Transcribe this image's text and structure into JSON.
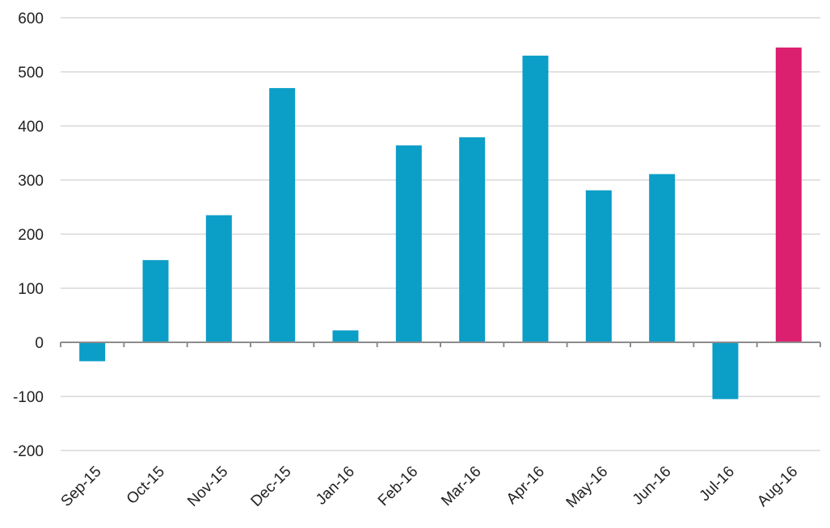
{
  "chart_data": {
    "type": "bar",
    "title": "",
    "xlabel": "",
    "ylabel": "",
    "categories": [
      "Sep-15",
      "Oct-15",
      "Nov-15",
      "Dec-15",
      "Jan-16",
      "Feb-16",
      "Mar-16",
      "Apr-16",
      "May-16",
      "Jun-16",
      "Jul-16",
      "Aug-16"
    ],
    "values": [
      -35,
      152,
      235,
      470,
      22,
      364,
      379,
      530,
      281,
      311,
      -105,
      545
    ],
    "bar_colors": [
      "#0b9ec7",
      "#0b9ec7",
      "#0b9ec7",
      "#0b9ec7",
      "#0b9ec7",
      "#0b9ec7",
      "#0b9ec7",
      "#0b9ec7",
      "#0b9ec7",
      "#0b9ec7",
      "#0b9ec7",
      "#dc2070"
    ],
    "ylim": [
      -200,
      600
    ],
    "yticks": [
      600,
      500,
      400,
      300,
      200,
      100,
      0,
      -100,
      -200
    ],
    "grid": true,
    "legend": "none"
  }
}
